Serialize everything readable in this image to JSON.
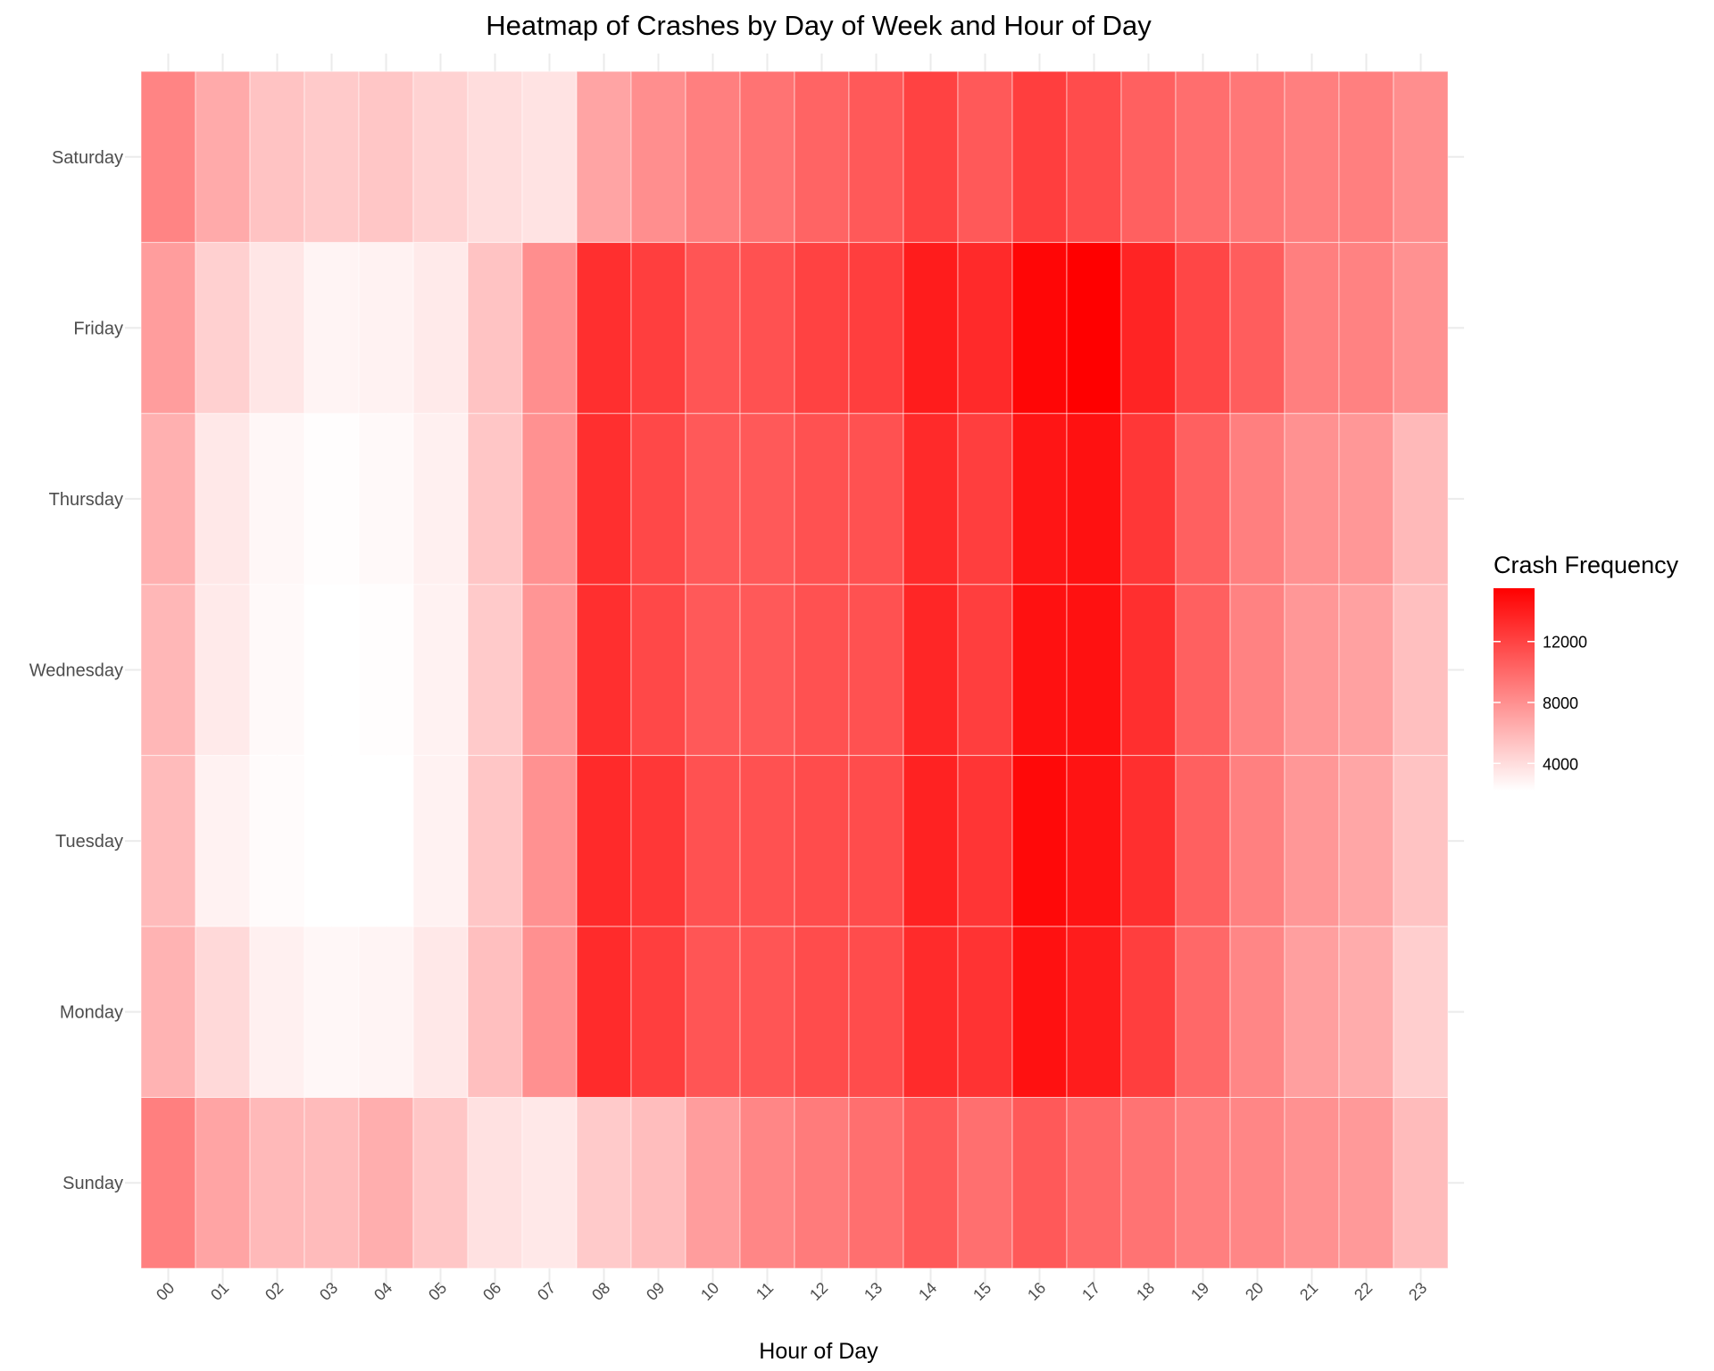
{
  "chart_data": {
    "type": "heatmap",
    "title": "Heatmap of Crashes by Day of Week and Hour of Day",
    "xlabel": "Hour of Day",
    "ylabel": "",
    "x_categories": [
      "00",
      "01",
      "02",
      "03",
      "04",
      "05",
      "06",
      "07",
      "08",
      "09",
      "10",
      "11",
      "12",
      "13",
      "14",
      "15",
      "16",
      "17",
      "18",
      "19",
      "20",
      "21",
      "22",
      "23"
    ],
    "y_categories": [
      "Sunday",
      "Monday",
      "Tuesday",
      "Wednesday",
      "Thursday",
      "Friday",
      "Saturday"
    ],
    "legend": {
      "title": "Crash Frequency",
      "ticks": [
        4000,
        8000,
        12000
      ],
      "tick_labels": [
        "4000",
        "8000",
        "12000"
      ],
      "min": 2000,
      "max": 15500,
      "low_color": "#ffffff",
      "high_color": "#ff0000",
      "placement": "right"
    },
    "values": {
      "Saturday": [
        8500,
        6500,
        5200,
        4800,
        5000,
        4400,
        3800,
        3500,
        6800,
        8000,
        8800,
        9400,
        10200,
        10800,
        12000,
        10800,
        12200,
        11500,
        10400,
        9700,
        9200,
        8800,
        8800,
        8000
      ],
      "Friday": [
        7200,
        4500,
        3300,
        2600,
        2700,
        3100,
        5200,
        8000,
        13000,
        12200,
        11000,
        11200,
        12000,
        12200,
        14000,
        13300,
        15200,
        15500,
        13600,
        11800,
        10600,
        8800,
        8600,
        7800
      ],
      "Thursday": [
        6200,
        3200,
        2400,
        2100,
        2300,
        2800,
        5000,
        7800,
        13000,
        11700,
        10800,
        10800,
        11200,
        11200,
        13300,
        12200,
        14400,
        14600,
        12600,
        10400,
        8800,
        7800,
        7500,
        5700
      ],
      "Wednesday": [
        5800,
        3100,
        2300,
        2000,
        2100,
        2700,
        4800,
        7600,
        13000,
        11700,
        10800,
        10800,
        11200,
        11200,
        13500,
        12200,
        14600,
        14600,
        13000,
        10400,
        8600,
        7500,
        7000,
        5400
      ],
      "Tuesday": [
        5600,
        2700,
        2200,
        2000,
        2000,
        2700,
        5000,
        7800,
        13300,
        12600,
        11200,
        11200,
        11500,
        11500,
        13700,
        12700,
        15000,
        14500,
        13000,
        10400,
        8700,
        7500,
        6700,
        5200
      ],
      "Monday": [
        6000,
        4000,
        2800,
        2400,
        2600,
        3200,
        5400,
        7900,
        13200,
        12200,
        11000,
        11000,
        11500,
        11500,
        13200,
        12800,
        14600,
        14000,
        12200,
        10000,
        8400,
        7100,
        6400,
        4600
      ],
      "Sunday": [
        8800,
        6800,
        5700,
        5600,
        6300,
        5000,
        3600,
        3200,
        4800,
        5500,
        7200,
        8400,
        9000,
        9600,
        10800,
        9600,
        10800,
        10000,
        9400,
        8800,
        8400,
        7800,
        7400,
        5600
      ]
    }
  }
}
